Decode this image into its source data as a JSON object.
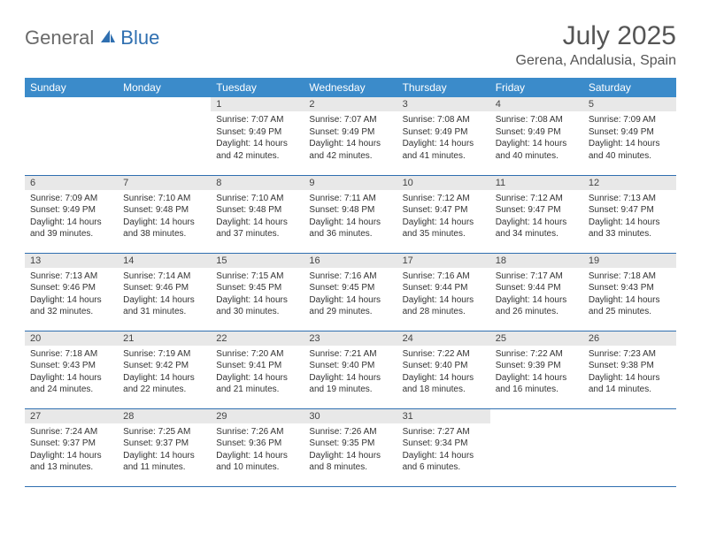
{
  "brand": {
    "part1": "General",
    "part2": "Blue"
  },
  "title": "July 2025",
  "location": "Gerena, Andalusia, Spain",
  "colors": {
    "header_bg": "#3b8bca",
    "header_text": "#ffffff",
    "daynum_bg": "#e8e8e8",
    "border": "#2f6fb0",
    "title_color": "#555555",
    "logo_gray": "#6a6a6a",
    "logo_blue": "#2f6fb0"
  },
  "dayNames": [
    "Sunday",
    "Monday",
    "Tuesday",
    "Wednesday",
    "Thursday",
    "Friday",
    "Saturday"
  ],
  "weeks": [
    [
      null,
      null,
      {
        "n": "1",
        "sr": "7:07 AM",
        "ss": "9:49 PM",
        "d": "14 hours and 42 minutes."
      },
      {
        "n": "2",
        "sr": "7:07 AM",
        "ss": "9:49 PM",
        "d": "14 hours and 42 minutes."
      },
      {
        "n": "3",
        "sr": "7:08 AM",
        "ss": "9:49 PM",
        "d": "14 hours and 41 minutes."
      },
      {
        "n": "4",
        "sr": "7:08 AM",
        "ss": "9:49 PM",
        "d": "14 hours and 40 minutes."
      },
      {
        "n": "5",
        "sr": "7:09 AM",
        "ss": "9:49 PM",
        "d": "14 hours and 40 minutes."
      }
    ],
    [
      {
        "n": "6",
        "sr": "7:09 AM",
        "ss": "9:49 PM",
        "d": "14 hours and 39 minutes."
      },
      {
        "n": "7",
        "sr": "7:10 AM",
        "ss": "9:48 PM",
        "d": "14 hours and 38 minutes."
      },
      {
        "n": "8",
        "sr": "7:10 AM",
        "ss": "9:48 PM",
        "d": "14 hours and 37 minutes."
      },
      {
        "n": "9",
        "sr": "7:11 AM",
        "ss": "9:48 PM",
        "d": "14 hours and 36 minutes."
      },
      {
        "n": "10",
        "sr": "7:12 AM",
        "ss": "9:47 PM",
        "d": "14 hours and 35 minutes."
      },
      {
        "n": "11",
        "sr": "7:12 AM",
        "ss": "9:47 PM",
        "d": "14 hours and 34 minutes."
      },
      {
        "n": "12",
        "sr": "7:13 AM",
        "ss": "9:47 PM",
        "d": "14 hours and 33 minutes."
      }
    ],
    [
      {
        "n": "13",
        "sr": "7:13 AM",
        "ss": "9:46 PM",
        "d": "14 hours and 32 minutes."
      },
      {
        "n": "14",
        "sr": "7:14 AM",
        "ss": "9:46 PM",
        "d": "14 hours and 31 minutes."
      },
      {
        "n": "15",
        "sr": "7:15 AM",
        "ss": "9:45 PM",
        "d": "14 hours and 30 minutes."
      },
      {
        "n": "16",
        "sr": "7:16 AM",
        "ss": "9:45 PM",
        "d": "14 hours and 29 minutes."
      },
      {
        "n": "17",
        "sr": "7:16 AM",
        "ss": "9:44 PM",
        "d": "14 hours and 28 minutes."
      },
      {
        "n": "18",
        "sr": "7:17 AM",
        "ss": "9:44 PM",
        "d": "14 hours and 26 minutes."
      },
      {
        "n": "19",
        "sr": "7:18 AM",
        "ss": "9:43 PM",
        "d": "14 hours and 25 minutes."
      }
    ],
    [
      {
        "n": "20",
        "sr": "7:18 AM",
        "ss": "9:43 PM",
        "d": "14 hours and 24 minutes."
      },
      {
        "n": "21",
        "sr": "7:19 AM",
        "ss": "9:42 PM",
        "d": "14 hours and 22 minutes."
      },
      {
        "n": "22",
        "sr": "7:20 AM",
        "ss": "9:41 PM",
        "d": "14 hours and 21 minutes."
      },
      {
        "n": "23",
        "sr": "7:21 AM",
        "ss": "9:40 PM",
        "d": "14 hours and 19 minutes."
      },
      {
        "n": "24",
        "sr": "7:22 AM",
        "ss": "9:40 PM",
        "d": "14 hours and 18 minutes."
      },
      {
        "n": "25",
        "sr": "7:22 AM",
        "ss": "9:39 PM",
        "d": "14 hours and 16 minutes."
      },
      {
        "n": "26",
        "sr": "7:23 AM",
        "ss": "9:38 PM",
        "d": "14 hours and 14 minutes."
      }
    ],
    [
      {
        "n": "27",
        "sr": "7:24 AM",
        "ss": "9:37 PM",
        "d": "14 hours and 13 minutes."
      },
      {
        "n": "28",
        "sr": "7:25 AM",
        "ss": "9:37 PM",
        "d": "14 hours and 11 minutes."
      },
      {
        "n": "29",
        "sr": "7:26 AM",
        "ss": "9:36 PM",
        "d": "14 hours and 10 minutes."
      },
      {
        "n": "30",
        "sr": "7:26 AM",
        "ss": "9:35 PM",
        "d": "14 hours and 8 minutes."
      },
      {
        "n": "31",
        "sr": "7:27 AM",
        "ss": "9:34 PM",
        "d": "14 hours and 6 minutes."
      },
      null,
      null
    ]
  ],
  "labels": {
    "sunrise": "Sunrise:",
    "sunset": "Sunset:",
    "daylight": "Daylight:"
  }
}
